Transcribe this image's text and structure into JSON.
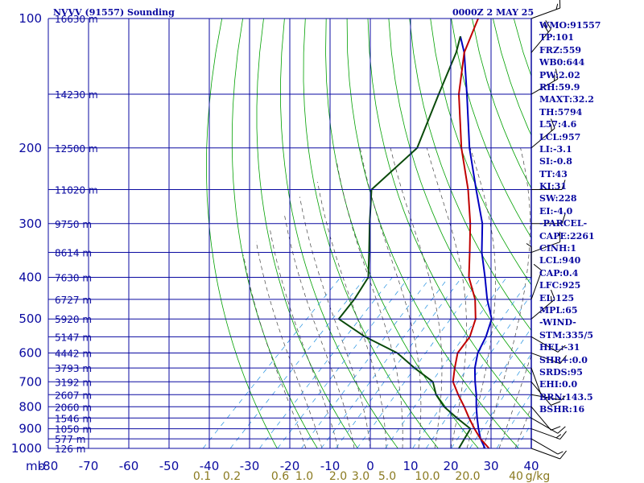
{
  "header": {
    "title": "NVVV (91557) Sounding",
    "time": "0000Z  2 MAY 25"
  },
  "colors": {
    "frame": "#0a0aa0",
    "temperature": "#c00000",
    "dewpoint": "#0a4a0a",
    "parcel": "#0000c0",
    "dry_adiabat": "#00a000",
    "moist_adiabat": "#444444",
    "mixing_ratio": "#2090e0",
    "wind_barb": "#000000"
  },
  "chart_data": {
    "type": "line",
    "title": "NVVV (91557) Sounding",
    "pressure_unit_label": "mb",
    "ylim_mb": [
      1000,
      100
    ],
    "xlim_c": [
      -80,
      40
    ],
    "x_ticks": [
      "-80",
      "-70",
      "-60",
      "-50",
      "-40",
      "-30",
      "-20",
      "-10",
      "0",
      "10",
      "20",
      "30",
      "40"
    ],
    "pressure_ticks": [
      {
        "p": 100,
        "label": "100"
      },
      {
        "p": 200,
        "label": "200"
      },
      {
        "p": 300,
        "label": "300"
      },
      {
        "p": 400,
        "label": "400"
      },
      {
        "p": 500,
        "label": "500"
      },
      {
        "p": 600,
        "label": "600"
      },
      {
        "p": 700,
        "label": "700"
      },
      {
        "p": 800,
        "label": "800"
      },
      {
        "p": 900,
        "label": "900"
      },
      {
        "p": 1000,
        "label": "1000"
      }
    ],
    "height_labels": [
      {
        "p": 100,
        "label": "16630 m"
      },
      {
        "p": 150,
        "label": "14230 m"
      },
      {
        "p": 200,
        "label": "12500 m"
      },
      {
        "p": 250,
        "label": "11020 m"
      },
      {
        "p": 300,
        "label": "9750 m"
      },
      {
        "p": 350,
        "label": "8614 m"
      },
      {
        "p": 400,
        "label": "7630 m"
      },
      {
        "p": 450,
        "label": "6727 m"
      },
      {
        "p": 500,
        "label": "5920 m"
      },
      {
        "p": 550,
        "label": "5147 m"
      },
      {
        "p": 600,
        "label": "4442 m"
      },
      {
        "p": 650,
        "label": "3793 m"
      },
      {
        "p": 700,
        "label": "3192 m"
      },
      {
        "p": 750,
        "label": "2607 m"
      },
      {
        "p": 800,
        "label": "2060 m"
      },
      {
        "p": 850,
        "label": "1546 m"
      },
      {
        "p": 900,
        "label": "1050 m"
      },
      {
        "p": 950,
        "label": "577 m"
      },
      {
        "p": 1000,
        "label": "126 m"
      }
    ],
    "mixing_ratio_labels": [
      "0.1",
      "0.2",
      "0.6",
      "1.0",
      "2.0",
      "3.0",
      "5.0",
      "10.0",
      "20.0",
      "40",
      "g/kg"
    ],
    "series": [
      {
        "name": "temperature",
        "points": [
          {
            "p": 1000,
            "t": 29.5
          },
          {
            "p": 950,
            "t": 25
          },
          {
            "p": 900,
            "t": 21
          },
          {
            "p": 850,
            "t": 17
          },
          {
            "p": 800,
            "t": 13
          },
          {
            "p": 750,
            "t": 8.5
          },
          {
            "p": 700,
            "t": 4
          },
          {
            "p": 650,
            "t": 1
          },
          {
            "p": 600,
            "t": -2
          },
          {
            "p": 550,
            "t": -3
          },
          {
            "p": 500,
            "t": -6
          },
          {
            "p": 450,
            "t": -11
          },
          {
            "p": 400,
            "t": -18
          },
          {
            "p": 350,
            "t": -24
          },
          {
            "p": 300,
            "t": -31
          },
          {
            "p": 250,
            "t": -40
          },
          {
            "p": 200,
            "t": -52
          },
          {
            "p": 150,
            "t": -66
          },
          {
            "p": 120,
            "t": -75
          },
          {
            "p": 100,
            "t": -80
          }
        ]
      },
      {
        "name": "dewpoint",
        "points": [
          {
            "p": 1000,
            "t": 22
          },
          {
            "p": 950,
            "t": 21
          },
          {
            "p": 900,
            "t": 20
          },
          {
            "p": 850,
            "t": 14
          },
          {
            "p": 800,
            "t": 8
          },
          {
            "p": 750,
            "t": 3
          },
          {
            "p": 700,
            "t": -1
          },
          {
            "p": 650,
            "t": -9
          },
          {
            "p": 600,
            "t": -17
          },
          {
            "p": 550,
            "t": -29
          },
          {
            "p": 500,
            "t": -40
          },
          {
            "p": 450,
            "t": -41
          },
          {
            "p": 400,
            "t": -43
          },
          {
            "p": 350,
            "t": -49
          },
          {
            "p": 300,
            "t": -56
          },
          {
            "p": 250,
            "t": -64
          },
          {
            "p": 200,
            "t": -63
          },
          {
            "p": 150,
            "t": -71
          },
          {
            "p": 120,
            "t": -77
          },
          {
            "p": 110,
            "t": -80
          }
        ]
      },
      {
        "name": "parcel",
        "points": [
          {
            "p": 1000,
            "t": 28.5
          },
          {
            "p": 950,
            "t": 25
          },
          {
            "p": 900,
            "t": 22
          },
          {
            "p": 850,
            "t": 19
          },
          {
            "p": 800,
            "t": 16
          },
          {
            "p": 750,
            "t": 13
          },
          {
            "p": 700,
            "t": 9.5
          },
          {
            "p": 650,
            "t": 6
          },
          {
            "p": 600,
            "t": 3
          },
          {
            "p": 550,
            "t": 1
          },
          {
            "p": 500,
            "t": -2
          },
          {
            "p": 450,
            "t": -8
          },
          {
            "p": 400,
            "t": -14
          },
          {
            "p": 350,
            "t": -21
          },
          {
            "p": 300,
            "t": -28
          },
          {
            "p": 250,
            "t": -38
          },
          {
            "p": 200,
            "t": -50
          },
          {
            "p": 150,
            "t": -64
          },
          {
            "p": 120,
            "t": -75
          },
          {
            "p": 110,
            "t": -80
          }
        ]
      }
    ],
    "wind_barbs": [
      {
        "p": 1000,
        "dir": 290,
        "spd": 10
      },
      {
        "p": 950,
        "dir": 300,
        "spd": 5
      },
      {
        "p": 900,
        "dir": 290,
        "spd": 15
      },
      {
        "p": 850,
        "dir": 300,
        "spd": 10
      },
      {
        "p": 800,
        "dir": 320,
        "spd": 10
      },
      {
        "p": 750,
        "dir": 280,
        "spd": 5
      },
      {
        "p": 700,
        "dir": 320,
        "spd": 10
      },
      {
        "p": 650,
        "dir": 340,
        "spd": 5
      },
      {
        "p": 600,
        "dir": 290,
        "spd": 10
      },
      {
        "p": 550,
        "dir": 300,
        "spd": 10
      },
      {
        "p": 500,
        "dir": 230,
        "spd": 15
      },
      {
        "p": 450,
        "dir": 200,
        "spd": 10
      },
      {
        "p": 400,
        "dir": 180,
        "spd": 5
      },
      {
        "p": 350,
        "dir": 250,
        "spd": 10
      },
      {
        "p": 300,
        "dir": 270,
        "spd": 10
      },
      {
        "p": 250,
        "dir": 270,
        "spd": 10
      },
      {
        "p": 200,
        "dir": 230,
        "spd": 15
      },
      {
        "p": 150,
        "dir": 240,
        "spd": 15
      },
      {
        "p": 120,
        "dir": 220,
        "spd": 20
      },
      {
        "p": 100,
        "dir": 250,
        "spd": 15
      }
    ]
  },
  "stats": [
    "WMO:91557",
    "TP:101",
    "FRZ:559",
    "WB0:644",
    "PW:2.02",
    "RH:59.9",
    "MAXT:32.2",
    "TH:5794",
    "L57:4.6",
    "LCL:957",
    "LI:-3.1",
    "SI:-0.8",
    "TT:43",
    "KI:31",
    "SW:228",
    "EI:-4.0",
    "-PARCEL-",
    "CAPE:2261",
    "CINH:1",
    "LCL:940",
    "CAP:0.4",
    "LFC:925",
    "EL:125",
    "MPL:65",
    "-WIND-",
    "STM:335/5",
    "HEL:-31",
    "SHR+:0.0",
    "SRDS:95",
    "EHI:0.0",
    "BRN:143.5",
    "BSHR:16"
  ]
}
